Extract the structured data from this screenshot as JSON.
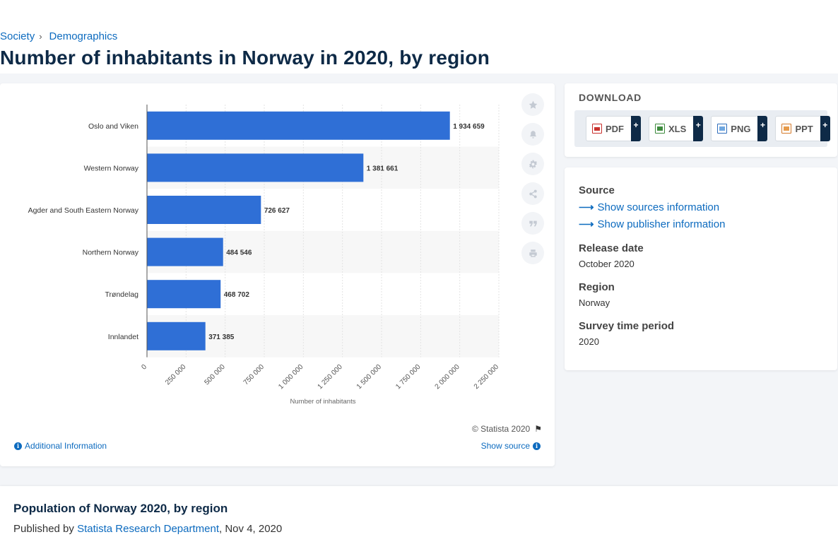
{
  "breadcrumb": {
    "items": [
      "Society",
      "Demographics"
    ],
    "separator": "›"
  },
  "page_title": "Number of inhabitants in Norway in 2020, by region",
  "chart_data": {
    "type": "bar",
    "orientation": "horizontal",
    "categories": [
      "Oslo and Viken",
      "Western Norway",
      "Agder and South Eastern Norway",
      "Northern Norway",
      "Trøndelag",
      "Innlandet"
    ],
    "values": [
      1934659,
      1381661,
      726627,
      484546,
      468702,
      371385
    ],
    "value_labels": [
      "1 934 659",
      "1 381 661",
      "726 627",
      "484 546",
      "468 702",
      "371 385"
    ],
    "xlabel": "Number of inhabitants",
    "xlim": [
      0,
      2250000
    ],
    "xticks": [
      0,
      250000,
      500000,
      750000,
      1000000,
      1250000,
      1500000,
      1750000,
      2000000,
      2250000
    ],
    "xtick_labels": [
      "0",
      "250 000",
      "500 000",
      "750 000",
      "1 000 000",
      "1 250 000",
      "1 500 000",
      "1 750 000",
      "2 000 000",
      "2 250 000"
    ],
    "grid": true,
    "bar_color": "#2f6fd6"
  },
  "chart_footer": {
    "copyright": "© Statista 2020",
    "additional_info": "Additional Information",
    "show_source": "Show source"
  },
  "side_tools": [
    "star-icon",
    "bell-icon",
    "gear-icon",
    "share-icon",
    "quote-icon",
    "print-icon"
  ],
  "download": {
    "title": "DOWNLOAD",
    "buttons": [
      {
        "label": "PDF",
        "icon": "pdf-file-icon"
      },
      {
        "label": "XLS",
        "icon": "xls-file-icon"
      },
      {
        "label": "PNG",
        "icon": "png-file-icon"
      },
      {
        "label": "PPT",
        "icon": "ppt-file-icon"
      }
    ],
    "plus": "+"
  },
  "source_panel": {
    "source_heading": "Source",
    "show_sources": "Show sources information",
    "show_publisher": "Show publisher information",
    "release_heading": "Release date",
    "release_value": "October 2020",
    "region_heading": "Region",
    "region_value": "Norway",
    "survey_heading": "Survey time period",
    "survey_value": "2020"
  },
  "related": {
    "title": "Population of Norway 2020, by region",
    "published_prefix": "Published by",
    "publisher": "Statista Research Department",
    "date": ", Nov 4, 2020"
  },
  "colors": {
    "brand_blue": "#0d6bbf",
    "title_navy": "#0e2a47",
    "bar": "#2f6fd6"
  }
}
